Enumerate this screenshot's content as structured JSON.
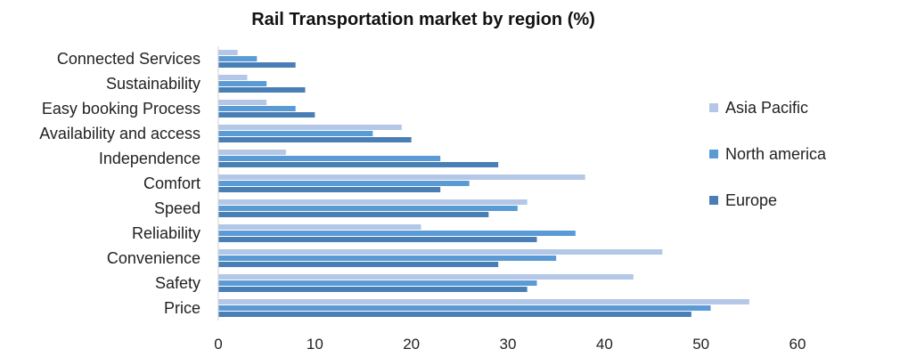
{
  "chart_data": {
    "type": "bar",
    "orientation": "horizontal",
    "title": "Rail Transportation market by region (%)",
    "xlabel": "",
    "ylabel": "",
    "xlim": [
      0,
      60
    ],
    "xticks": [
      0,
      10,
      20,
      30,
      40,
      50,
      60
    ],
    "grid": false,
    "legend_position": "right",
    "categories": [
      "Connected Services",
      "Sustainability",
      "Easy booking Process",
      "Availability and access",
      "Independence",
      "Comfort",
      "Speed",
      "Reliability",
      "Convenience",
      "Safety",
      "Price"
    ],
    "series": [
      {
        "name": "Asia Pacific",
        "color": "#b4c7e7",
        "values": [
          2,
          3,
          5,
          19,
          7,
          38,
          32,
          21,
          46,
          43,
          55
        ]
      },
      {
        "name": "North america",
        "color": "#5b9bd5",
        "values": [
          4,
          5,
          8,
          16,
          23,
          26,
          31,
          37,
          35,
          33,
          51
        ]
      },
      {
        "name": "Europe",
        "color": "#4a7fb5",
        "values": [
          8,
          9,
          10,
          20,
          29,
          23,
          28,
          33,
          29,
          32,
          49
        ]
      }
    ]
  }
}
